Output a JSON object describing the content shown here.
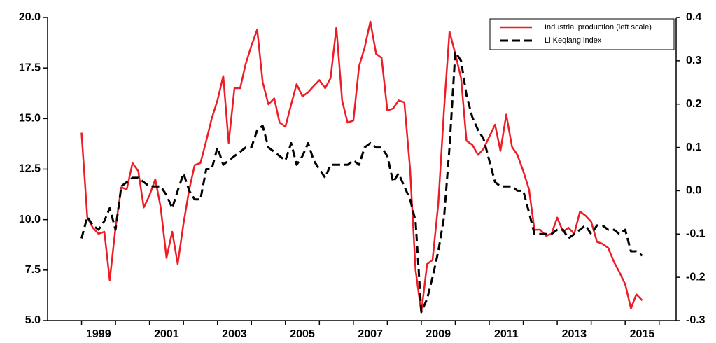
{
  "chart_data": {
    "type": "line",
    "x": [
      1999,
      1999.17,
      1999.33,
      1999.5,
      1999.67,
      1999.83,
      2000,
      2000.17,
      2000.33,
      2000.5,
      2000.67,
      2000.83,
      2001,
      2001.17,
      2001.33,
      2001.5,
      2001.67,
      2001.83,
      2002,
      2002.17,
      2002.33,
      2002.5,
      2002.67,
      2002.83,
      2003,
      2003.17,
      2003.33,
      2003.5,
      2003.67,
      2003.83,
      2004,
      2004.17,
      2004.33,
      2004.5,
      2004.67,
      2004.83,
      2005,
      2005.17,
      2005.33,
      2005.5,
      2005.67,
      2005.83,
      2006,
      2006.17,
      2006.33,
      2006.5,
      2006.67,
      2006.83,
      2007,
      2007.17,
      2007.33,
      2007.5,
      2007.67,
      2007.83,
      2008,
      2008.17,
      2008.33,
      2008.5,
      2008.67,
      2008.83,
      2009,
      2009.17,
      2009.33,
      2009.5,
      2009.67,
      2009.83,
      2010,
      2010.17,
      2010.33,
      2010.5,
      2010.67,
      2010.83,
      2011,
      2011.17,
      2011.33,
      2011.5,
      2011.67,
      2011.83,
      2012,
      2012.17,
      2012.33,
      2012.5,
      2012.67,
      2012.83,
      2013,
      2013.17,
      2013.33,
      2013.5,
      2013.67,
      2013.83,
      2014,
      2014.17,
      2014.33,
      2014.5,
      2014.67,
      2014.83,
      2015,
      2015.17,
      2015.33,
      2015.5
    ],
    "series": [
      {
        "name": "Industrial production (left scale)",
        "color": "#ee1c25",
        "dash": false,
        "values": [
          14.3,
          10.1,
          9.6,
          9.3,
          9.4,
          7.0,
          9.6,
          11.6,
          11.5,
          12.8,
          12.4,
          10.6,
          11.2,
          12.0,
          10.6,
          8.1,
          9.4,
          7.8,
          9.8,
          11.5,
          12.7,
          12.8,
          13.9,
          15.0,
          15.9,
          17.1,
          13.8,
          16.5,
          16.5,
          17.7,
          18.6,
          19.4,
          16.8,
          15.7,
          16.0,
          14.8,
          14.6,
          15.7,
          16.7,
          16.1,
          16.3,
          16.6,
          16.9,
          16.5,
          17.0,
          19.5,
          15.9,
          14.8,
          14.9,
          17.6,
          18.5,
          19.8,
          18.2,
          18.0,
          15.4,
          15.5,
          15.9,
          15.8,
          12.5,
          7.5,
          5.4,
          7.8,
          8.0,
          10.8,
          15.5,
          19.3,
          18.2,
          17.0,
          13.9,
          13.7,
          13.2,
          13.5,
          14.1,
          14.7,
          13.4,
          15.2,
          13.6,
          13.2,
          12.4,
          11.5,
          9.5,
          9.5,
          9.2,
          9.3,
          10.1,
          9.4,
          9.6,
          9.3,
          10.4,
          10.2,
          9.9,
          8.9,
          8.8,
          8.6,
          7.9,
          7.4,
          6.8,
          5.6,
          6.3,
          6.0
        ]
      },
      {
        "name": "Li Keqiang index",
        "color": "#000000",
        "dash": true,
        "axis": "y2",
        "values": [
          -0.11,
          -0.06,
          -0.08,
          -0.09,
          -0.07,
          -0.04,
          -0.09,
          0.01,
          0.02,
          0.03,
          0.03,
          0.02,
          0.01,
          0.01,
          0.01,
          -0.01,
          -0.04,
          0.0,
          0.04,
          0.0,
          -0.02,
          -0.02,
          0.05,
          0.05,
          0.1,
          0.06,
          0.07,
          0.08,
          0.09,
          0.1,
          0.1,
          0.14,
          0.15,
          0.1,
          0.09,
          0.08,
          0.07,
          0.11,
          0.06,
          0.08,
          0.11,
          0.07,
          0.05,
          0.03,
          0.06,
          0.06,
          0.06,
          0.06,
          0.07,
          0.06,
          0.1,
          0.11,
          0.1,
          0.1,
          0.08,
          0.02,
          0.04,
          0.01,
          -0.02,
          -0.07,
          -0.28,
          -0.25,
          -0.2,
          -0.14,
          -0.06,
          0.1,
          0.32,
          0.3,
          0.22,
          0.17,
          0.14,
          0.12,
          0.07,
          0.02,
          0.01,
          0.01,
          0.01,
          0.0,
          0.0,
          -0.05,
          -0.1,
          -0.1,
          -0.1,
          -0.1,
          -0.09,
          -0.09,
          -0.11,
          -0.1,
          -0.09,
          -0.08,
          -0.1,
          -0.08,
          -0.08,
          -0.09,
          -0.09,
          -0.1,
          -0.09,
          -0.14,
          -0.14,
          -0.15
        ]
      }
    ],
    "xlim": [
      1998,
      2016.5
    ],
    "xticks": [
      {
        "value": 1999.5,
        "label": "1999"
      },
      {
        "value": 2001.5,
        "label": "2001"
      },
      {
        "value": 2003.5,
        "label": "2003"
      },
      {
        "value": 2005.5,
        "label": "2005"
      },
      {
        "value": 2007.5,
        "label": "2007"
      },
      {
        "value": 2009.5,
        "label": "2009"
      },
      {
        "value": 2011.5,
        "label": "2011"
      },
      {
        "value": 2013.5,
        "label": "2013"
      },
      {
        "value": 2015.5,
        "label": "2015"
      }
    ],
    "xminorticks": [
      1999,
      2000,
      2001,
      2002,
      2003,
      2004,
      2005,
      2006,
      2007,
      2008,
      2009,
      2010,
      2011,
      2012,
      2013,
      2014,
      2015,
      2016
    ],
    "ylim": [
      5,
      20
    ],
    "yticks": [
      {
        "value": 5,
        "label": "5.0"
      },
      {
        "value": 7.5,
        "label": "7.5"
      },
      {
        "value": 10,
        "label": "10.0"
      },
      {
        "value": 12.5,
        "label": "12.5"
      },
      {
        "value": 15,
        "label": "15.0"
      },
      {
        "value": 17.5,
        "label": "17.5"
      },
      {
        "value": 20,
        "label": "20.0"
      }
    ],
    "y2lim": [
      -0.3,
      0.4
    ],
    "y2ticks": [
      -0.3,
      -0.2,
      -0.1,
      {
        "value": 0,
        "label": "0.0"
      },
      0.1,
      0.2,
      0.3,
      0.4
    ],
    "legend": "top-right"
  }
}
